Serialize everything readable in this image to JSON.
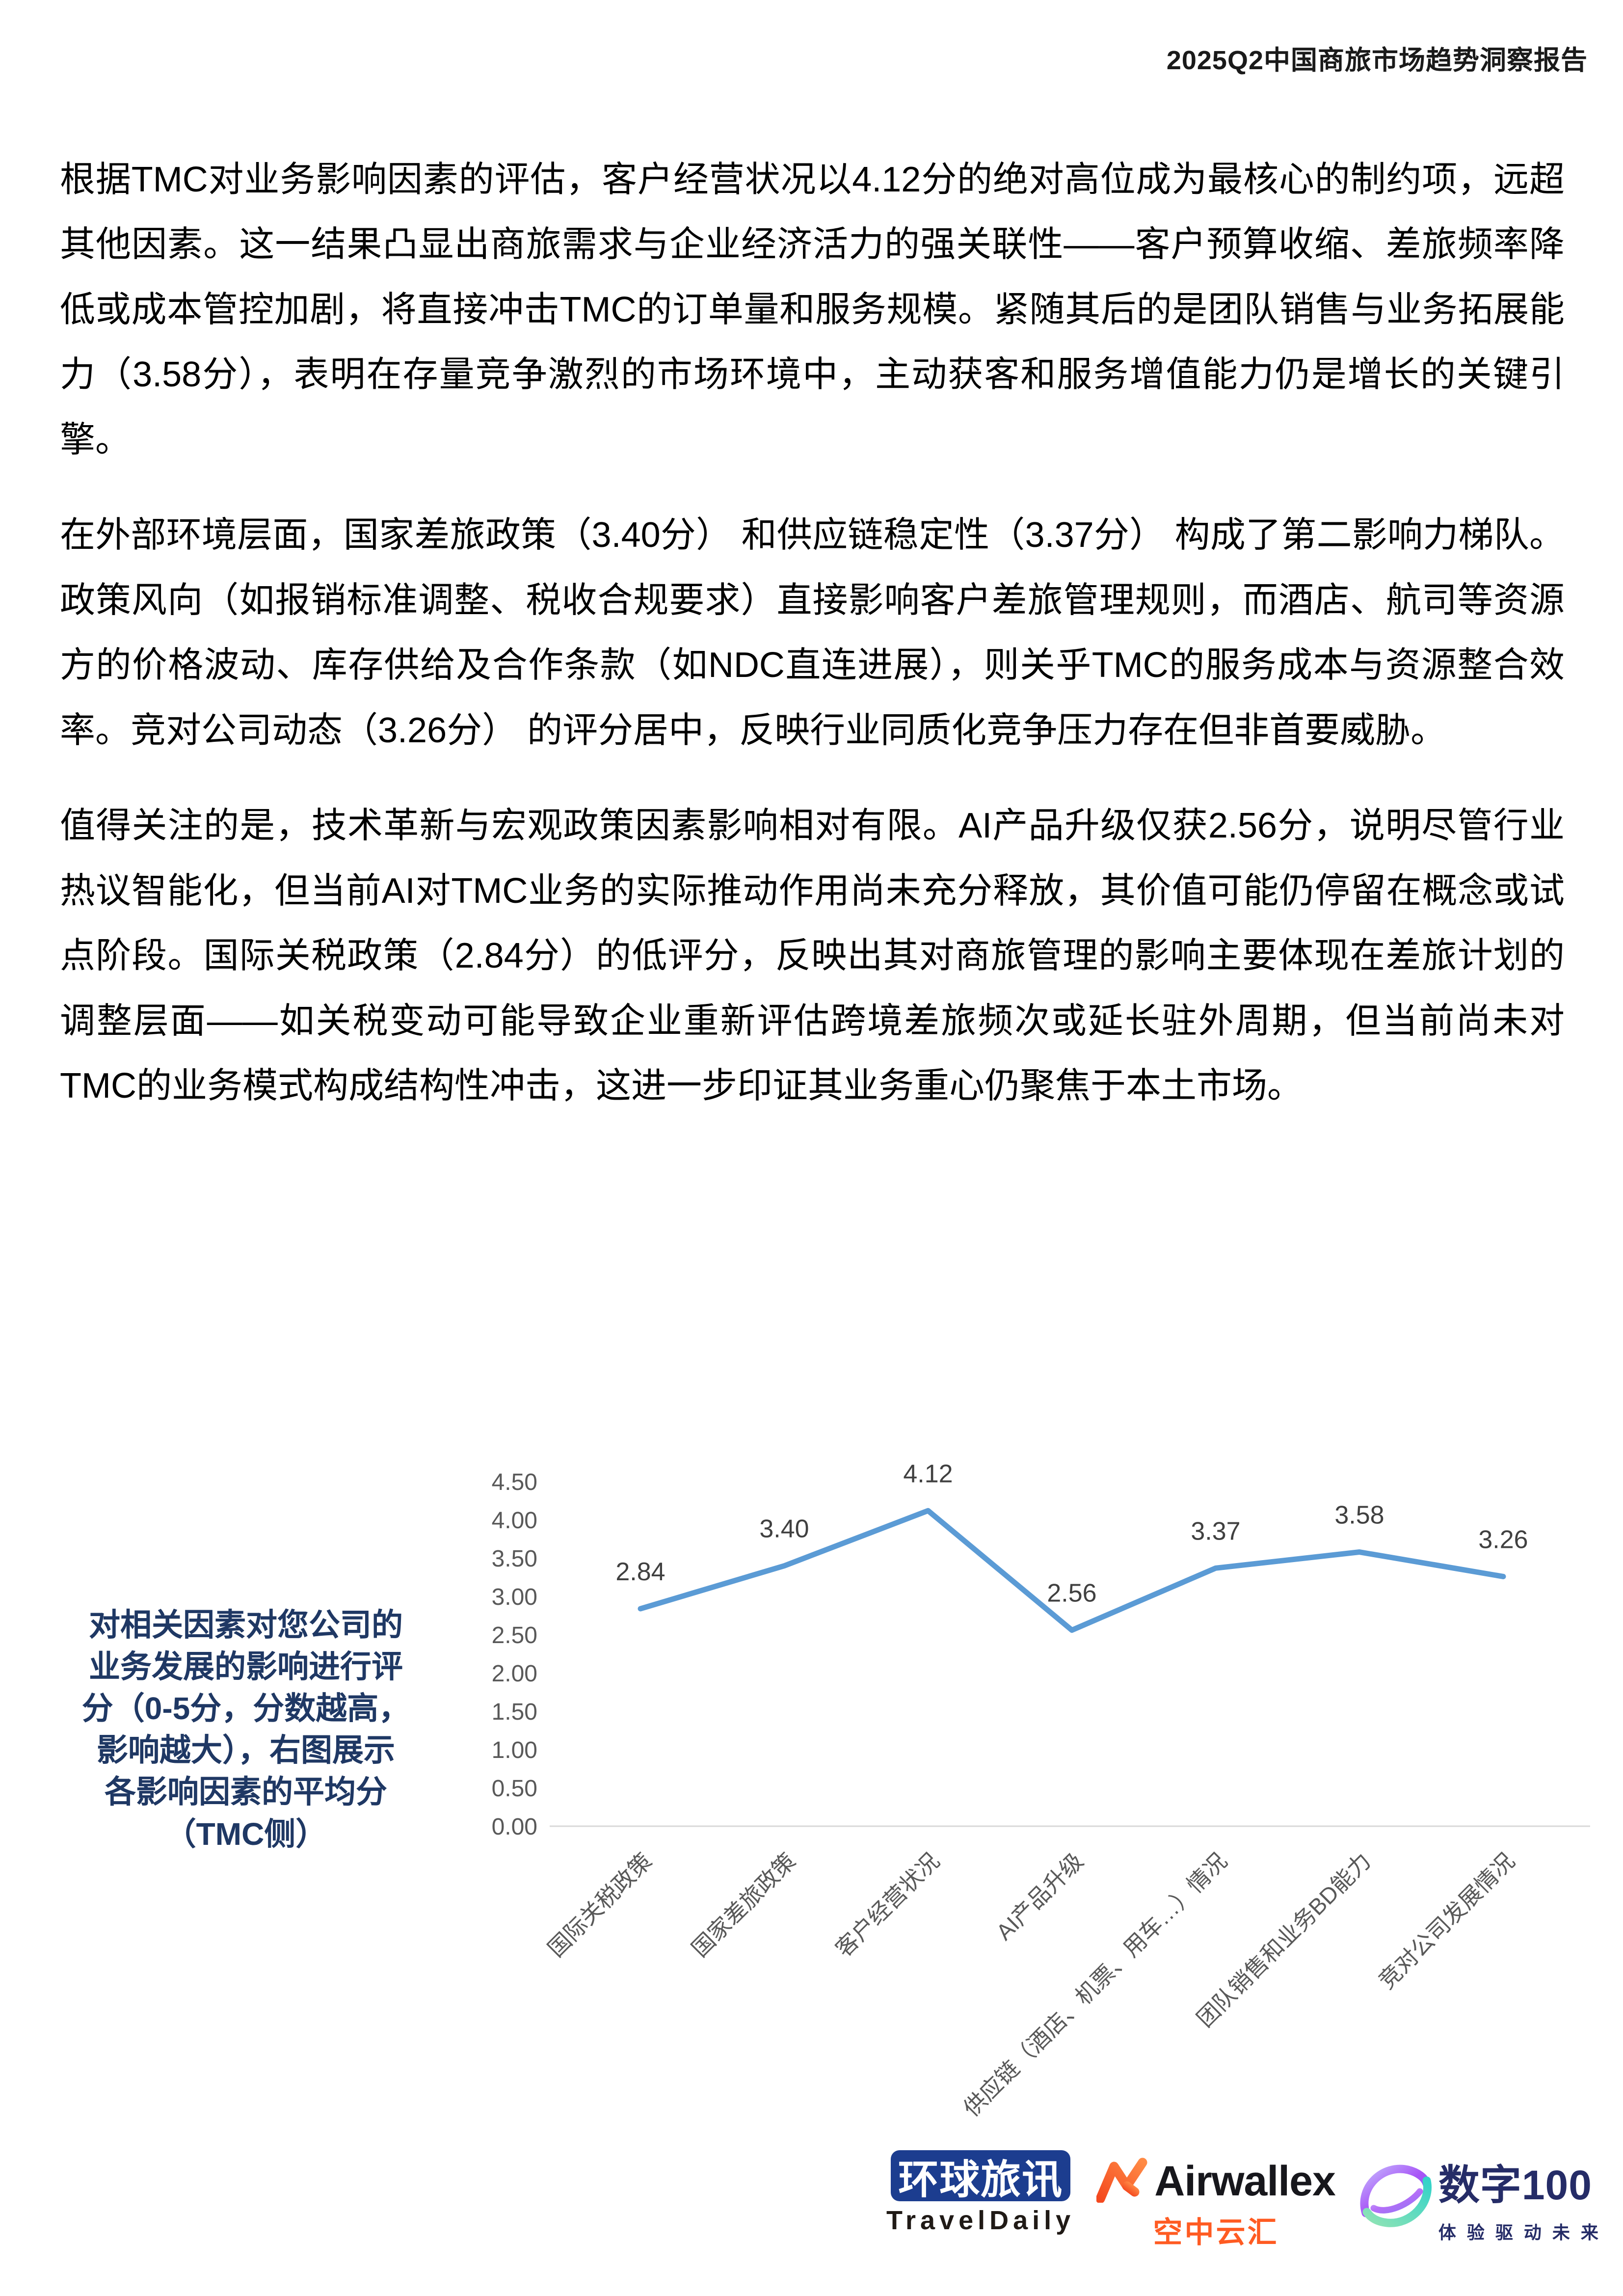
{
  "header": {
    "title": "2025Q2中国商旅市场趋势洞察报告"
  },
  "paragraphs": [
    "根据TMC对业务影响因素的评估，客户经营状况以4.12分的绝对高位成为最核心的制约项，远超其他因素。这一结果凸显出商旅需求与企业经济活力的强关联性——客户预算收缩、差旅频率降低或成本管控加剧，将直接冲击TMC的订单量和服务规模。紧随其后的是团队销售与业务拓展能力（3.58分），表明在存量竞争激烈的市场环境中，主动获客和服务增值能力仍是增长的关键引擎。",
    "在外部环境层面，国家差旅政策（3.40分） 和供应链稳定性（3.37分） 构成了第二影响力梯队。政策风向（如报销标准调整、税收合规要求）直接影响客户差旅管理规则，而酒店、航司等资源方的价格波动、库存供给及合作条款（如NDC直连进展），则关乎TMC的服务成本与资源整合效率。竞对公司动态（3.26分） 的评分居中，反映行业同质化竞争压力存在但非首要威胁。",
    "值得关注的是，技术革新与宏观政策因素影响相对有限。AI产品升级仅获2.56分，说明尽管行业热议智能化，但当前AI对TMC业务的实际推动作用尚未充分释放，其价值可能仍停留在概念或试点阶段。国际关税政策（2.84分）的低评分，反映出其对商旅管理的影响主要体现在差旅计划的调整层面——如关税变动可能导致企业重新评估跨境差旅频次或延长驻外周期，但当前尚未对TMC的业务模式构成结构性冲击，这进一步印证其业务重心仍聚焦于本土市场。"
  ],
  "chart_note_lines": [
    "对相关因素对您公司的",
    "业务发展的影响进行评",
    "分（0-5分，分数越高，",
    "影响越大），右图展示",
    "各影响因素的平均分",
    "（TMC侧）"
  ],
  "chart_data": {
    "type": "line",
    "categories": [
      "国际关税政策",
      "国家差旅政策",
      "客户经营状况",
      "AI产品升级",
      "供应链（酒店、机票、用车…）情况",
      "团队销售和业务BD能力",
      "竞对公司发展情况"
    ],
    "values": [
      2.84,
      3.4,
      4.12,
      2.56,
      3.37,
      3.58,
      3.26
    ],
    "title": "",
    "xlabel": "",
    "ylabel": "",
    "ylim": [
      0,
      4.5
    ],
    "ytick_step": 0.5,
    "legend": "none",
    "grid": "baseline-only",
    "line_color": "#5B9BD5",
    "data_label_color": "#404040",
    "tick_label_color": "#595959",
    "baseline_color": "#D9D9D9"
  },
  "footer": {
    "traveldaily": {
      "cn": "环球旅讯",
      "en": "TravelDaily",
      "box_color": "#1C3D8F"
    },
    "airwallex": {
      "en": "Airwallex",
      "cn": "空中云汇",
      "orange": "#FF5B22"
    },
    "digital100": {
      "cn": "数字100",
      "slogan": "体验驱动未来",
      "navy": "#252C67"
    }
  }
}
